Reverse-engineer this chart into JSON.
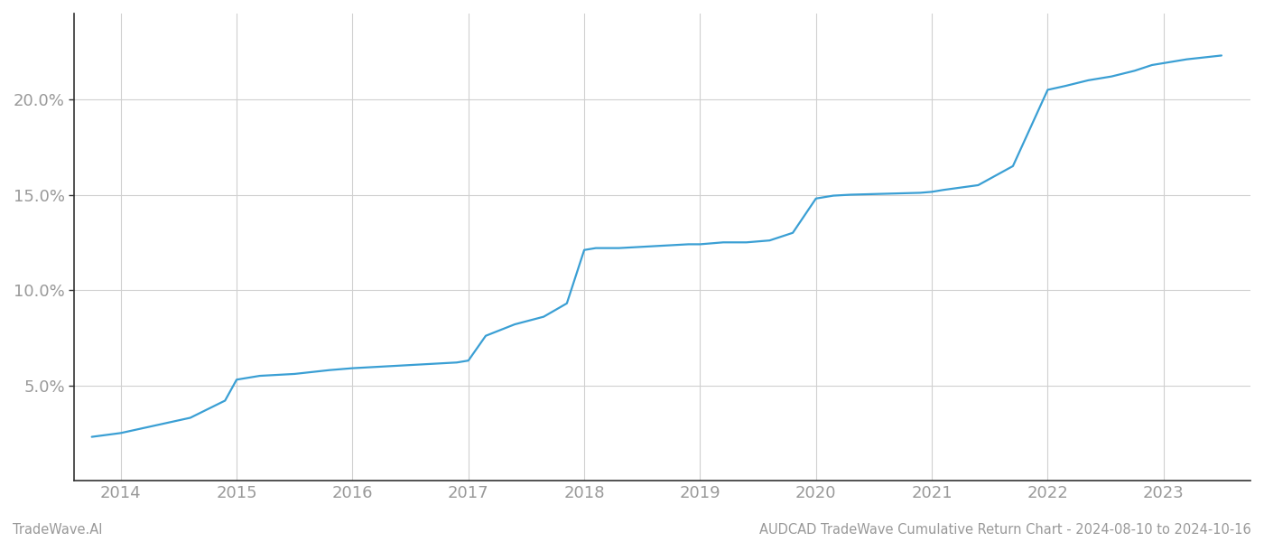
{
  "x_years": [
    2013.75,
    2014.0,
    2014.3,
    2014.6,
    2014.9,
    2015.0,
    2015.2,
    2015.5,
    2015.8,
    2016.0,
    2016.3,
    2016.6,
    2016.9,
    2017.0,
    2017.15,
    2017.4,
    2017.65,
    2017.85,
    2018.0,
    2018.1,
    2018.3,
    2018.6,
    2018.9,
    2019.0,
    2019.2,
    2019.4,
    2019.6,
    2019.8,
    2020.0,
    2020.15,
    2020.3,
    2020.6,
    2020.9,
    2021.0,
    2021.1,
    2021.4,
    2021.7,
    2021.85,
    2022.0,
    2022.15,
    2022.35,
    2022.55,
    2022.75,
    2022.9,
    2023.0,
    2023.2,
    2023.5
  ],
  "y_values": [
    2.3,
    2.5,
    2.9,
    3.3,
    4.2,
    5.3,
    5.5,
    5.6,
    5.8,
    5.9,
    6.0,
    6.1,
    6.2,
    6.3,
    7.6,
    8.2,
    8.6,
    9.3,
    12.1,
    12.2,
    12.2,
    12.3,
    12.4,
    12.4,
    12.5,
    12.5,
    12.6,
    13.0,
    14.8,
    14.95,
    15.0,
    15.05,
    15.1,
    15.15,
    15.25,
    15.5,
    16.5,
    18.5,
    20.5,
    20.7,
    21.0,
    21.2,
    21.5,
    21.8,
    21.9,
    22.1,
    22.3
  ],
  "line_color": "#3a9fd4",
  "line_width": 1.6,
  "xlim": [
    2013.6,
    2023.75
  ],
  "ylim": [
    0,
    24.5
  ],
  "yticks": [
    5.0,
    10.0,
    15.0,
    20.0
  ],
  "ytick_labels": [
    "5.0%",
    "10.0%",
    "15.0%",
    "20.0%"
  ],
  "xticks": [
    2014,
    2015,
    2016,
    2017,
    2018,
    2019,
    2020,
    2021,
    2022,
    2023
  ],
  "xtick_labels": [
    "2014",
    "2015",
    "2016",
    "2017",
    "2018",
    "2019",
    "2020",
    "2021",
    "2022",
    "2023"
  ],
  "grid_color": "#d0d0d0",
  "bg_color": "#ffffff",
  "tick_color": "#999999",
  "spine_color": "#333333",
  "footer_left": "TradeWave.AI",
  "footer_right": "AUDCAD TradeWave Cumulative Return Chart - 2024-08-10 to 2024-10-16",
  "footer_color": "#999999",
  "footer_fontsize": 10.5
}
